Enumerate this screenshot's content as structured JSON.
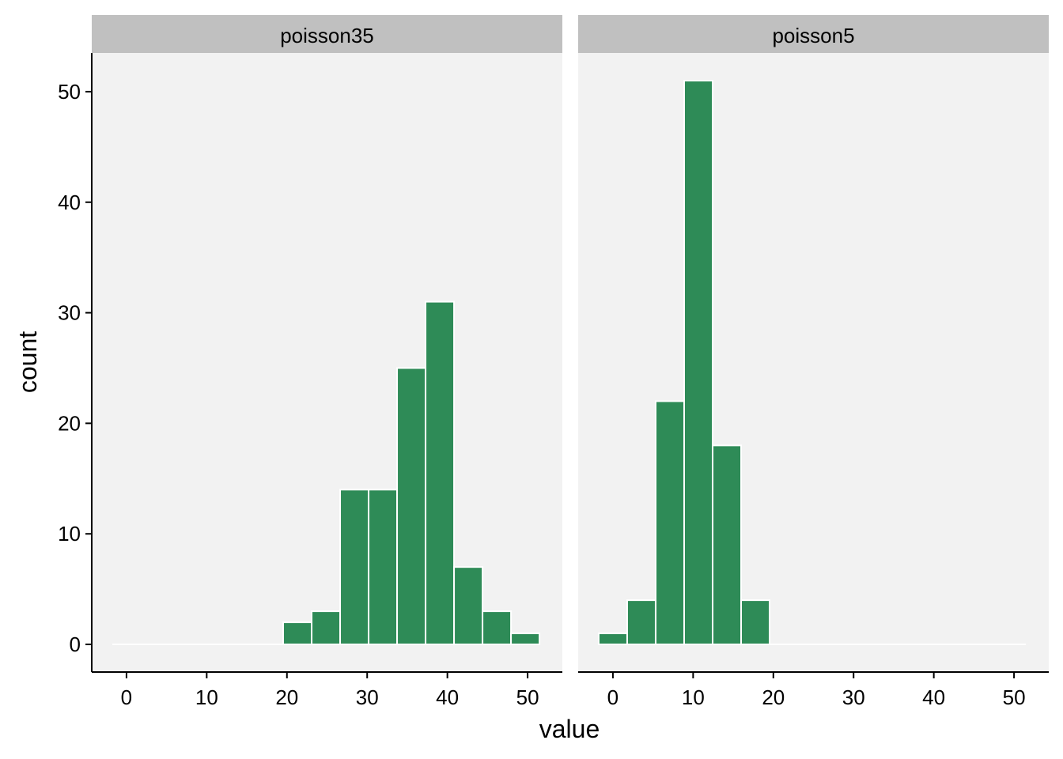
{
  "chart_data": {
    "type": "bar",
    "xlabel": "value",
    "ylabel": "count",
    "ylim": [
      -2.5,
      53.5
    ],
    "xlim": [
      -4.33,
      54.33
    ],
    "x_ticks": [
      0,
      10,
      20,
      30,
      40,
      50
    ],
    "y_ticks": [
      0,
      10,
      20,
      30,
      40,
      50
    ],
    "bin_width": 3.55,
    "bin_starts": [
      -1.77,
      1.78,
      5.33,
      8.88,
      12.43,
      15.98,
      19.53,
      23.08,
      26.63,
      30.18,
      33.73,
      37.28,
      40.83,
      44.38,
      47.93
    ],
    "fill_color": "#2e8b57",
    "edge_color": "#ffffff",
    "panel_background": "#f2f2f2",
    "strip_background": "#c0c0c0",
    "grid": false,
    "panels": [
      {
        "strip": "poisson35",
        "counts": [
          0,
          0,
          0,
          0,
          0,
          0,
          2,
          3,
          14,
          14,
          25,
          31,
          7,
          3,
          1
        ]
      },
      {
        "strip": "poisson5",
        "counts": [
          1,
          4,
          22,
          51,
          18,
          4,
          0,
          0,
          0,
          0,
          0,
          0,
          0,
          0,
          0
        ]
      }
    ]
  }
}
